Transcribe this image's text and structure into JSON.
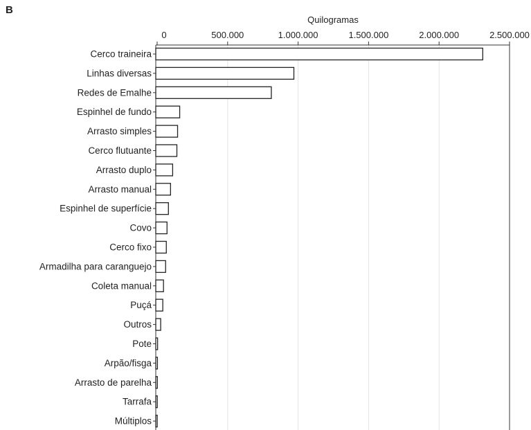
{
  "panel_label": "B",
  "chart_data": {
    "type": "bar",
    "orientation": "horizontal",
    "title": "",
    "xlabel": "Quilogramas",
    "ylabel": "",
    "xlim": [
      0,
      2500000
    ],
    "x_ticks": [
      0,
      500000,
      1000000,
      1500000,
      2000000,
      2500000
    ],
    "x_tick_labels": [
      "0",
      "500.000",
      "1.000.000",
      "1.500.000",
      "2.000.000",
      "2.500.000"
    ],
    "x_axis_position": "top",
    "grid": "vertical",
    "categories": [
      "Cerco traineira",
      "Linhas diversas",
      "Redes de Emalhe",
      "Espinhel de fundo",
      "Arrasto simples",
      "Cerco flutuante",
      "Arrasto duplo",
      "Arrasto manual",
      "Espinhel de superfície",
      "Covo",
      "Cerco fixo",
      "Armadilha para caranguejo",
      "Coleta manual",
      "Puçá",
      "Outros",
      "Pote",
      "Arpão/fisga",
      "Arrasto de parelha",
      "Tarrafa",
      "Múltiplos"
    ],
    "values": [
      2310000,
      970000,
      810000,
      160000,
      145000,
      140000,
      110000,
      95000,
      80000,
      70000,
      65000,
      60000,
      45000,
      40000,
      25000,
      3000,
      2000,
      1500,
      1000,
      500
    ],
    "colors": {
      "bar_fill": "#ffffff",
      "bar_stroke": "#222222",
      "grid": "#e3e3e3",
      "axis": "#333333"
    }
  }
}
